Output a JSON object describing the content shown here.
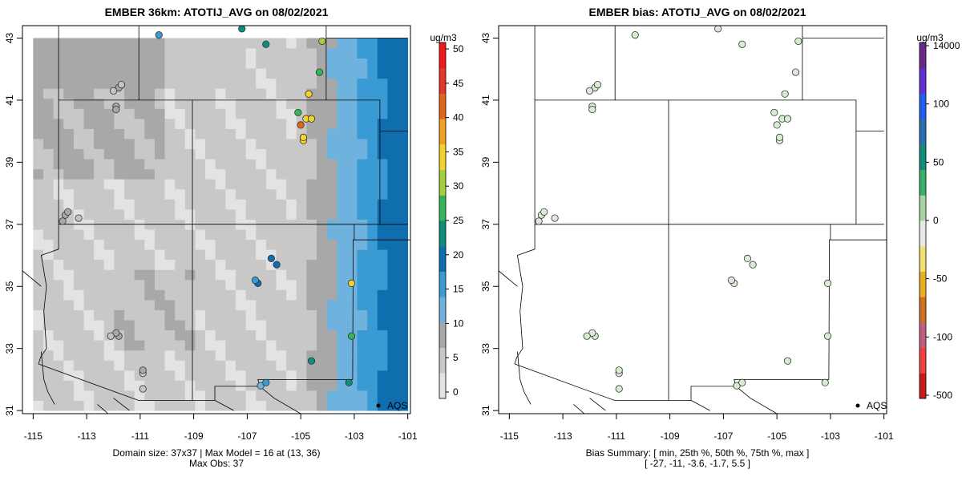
{
  "chart_data": [
    {
      "type": "map-grid-scatter",
      "title": "EMBER 36km: ATOTIJ_AVG on 08/02/2021",
      "xlim": [
        -115.4,
        -100.9
      ],
      "ylim": [
        30.9,
        43.4
      ],
      "x_ticks": [
        "-115",
        "-113",
        "-111",
        "-109",
        "-107",
        "-105",
        "-103",
        "-101"
      ],
      "x_tick_values": [
        -115,
        -113,
        -111,
        -109,
        -107,
        -105,
        -103,
        -101
      ],
      "y_ticks": [
        "31",
        "33",
        "35",
        "37",
        "39",
        "41",
        "43"
      ],
      "y_tick_values": [
        31,
        33,
        35,
        37,
        39,
        41,
        43
      ],
      "colorbar": {
        "unit": "ug/m3",
        "labels": [
          "0",
          "5",
          "10",
          "15",
          "20",
          "25",
          "30",
          "35",
          "40",
          "45",
          "50"
        ],
        "colors": [
          "#e3e3e3",
          "#c8c8c8",
          "#a8a8a8",
          "#6fb2de",
          "#3a9ad3",
          "#0e6eae",
          "#0f8f79",
          "#38b35a",
          "#a6cf3f",
          "#f3d22e",
          "#f0a020",
          "#e26617",
          "#e2342a",
          "#f01818"
        ]
      },
      "legend": {
        "label": "AQS",
        "position": "bottom-right"
      },
      "notes": [
        "Domain size: 37x37 | Max Model = 16 at (13, 36)",
        "Max Obs: 37"
      ],
      "observations": [
        {
          "lon": -113.8,
          "lat": 37.3,
          "value": 6
        },
        {
          "lon": -113.7,
          "lat": 37.4,
          "value": 6
        },
        {
          "lon": -113.9,
          "lat": 37.1,
          "value": 5
        },
        {
          "lon": -113.3,
          "lat": 37.2,
          "value": 4
        },
        {
          "lon": -111.9,
          "lat": 40.8,
          "value": 5
        },
        {
          "lon": -111.9,
          "lat": 40.7,
          "value": 5
        },
        {
          "lon": -111.8,
          "lat": 41.4,
          "value": 5
        },
        {
          "lon": -112.0,
          "lat": 41.3,
          "value": 4
        },
        {
          "lon": -111.7,
          "lat": 41.5,
          "value": 4
        },
        {
          "lon": -110.9,
          "lat": 32.2,
          "value": 4
        },
        {
          "lon": -110.9,
          "lat": 32.3,
          "value": 5
        },
        {
          "lon": -111.8,
          "lat": 33.4,
          "value": 5
        },
        {
          "lon": -111.9,
          "lat": 33.5,
          "value": 5
        },
        {
          "lon": -112.1,
          "lat": 33.4,
          "value": 4
        },
        {
          "lon": -110.9,
          "lat": 31.7,
          "value": 3
        },
        {
          "lon": -106.5,
          "lat": 31.8,
          "value": 8
        },
        {
          "lon": -106.3,
          "lat": 31.9,
          "value": 11
        },
        {
          "lon": -106.6,
          "lat": 35.1,
          "value": 14
        },
        {
          "lon": -106.7,
          "lat": 35.2,
          "value": 12
        },
        {
          "lon": -105.9,
          "lat": 35.7,
          "value": 14
        },
        {
          "lon": -106.1,
          "lat": 35.9,
          "value": 14
        },
        {
          "lon": -104.9,
          "lat": 39.7,
          "value": 30
        },
        {
          "lon": -104.9,
          "lat": 39.8,
          "value": 28
        },
        {
          "lon": -105.0,
          "lat": 40.2,
          "value": 37
        },
        {
          "lon": -104.8,
          "lat": 40.4,
          "value": 29
        },
        {
          "lon": -105.1,
          "lat": 40.6,
          "value": 21
        },
        {
          "lon": -104.6,
          "lat": 40.4,
          "value": 30
        },
        {
          "lon": -104.7,
          "lat": 41.2,
          "value": 28
        },
        {
          "lon": -103.1,
          "lat": 35.1,
          "value": 28
        },
        {
          "lon": -103.1,
          "lat": 33.4,
          "value": 23
        },
        {
          "lon": -104.3,
          "lat": 41.9,
          "value": 22
        },
        {
          "lon": -104.2,
          "lat": 42.9,
          "value": 27
        },
        {
          "lon": -107.2,
          "lat": 43.3,
          "value": 18
        },
        {
          "lon": -106.3,
          "lat": 42.8,
          "value": 18
        },
        {
          "lon": -110.3,
          "lat": 43.1,
          "value": 12
        },
        {
          "lon": -104.6,
          "lat": 32.6,
          "value": 19
        },
        {
          "lon": -103.2,
          "lat": 31.9,
          "value": 19
        }
      ]
    },
    {
      "type": "map-scatter",
      "title": "EMBER bias: ATOTIJ_AVG on 08/02/2021",
      "xlim": [
        -115.4,
        -100.9
      ],
      "ylim": [
        30.9,
        43.4
      ],
      "x_ticks": [
        "-115",
        "-113",
        "-111",
        "-109",
        "-107",
        "-105",
        "-103",
        "-101"
      ],
      "x_tick_values": [
        -115,
        -113,
        -111,
        -109,
        -107,
        -105,
        -103,
        -101
      ],
      "y_ticks": [
        "31",
        "33",
        "35",
        "37",
        "39",
        "41",
        "43"
      ],
      "y_tick_values": [
        31,
        33,
        35,
        37,
        39,
        41,
        43
      ],
      "colorbar": {
        "unit": "ug/m3",
        "labels": [
          "14000",
          "100",
          "50",
          "0",
          "-50",
          "-100",
          "-500"
        ],
        "colors": [
          "#c81c1c",
          "#f04040",
          "#c06080",
          "#d07020",
          "#e8b020",
          "#f0e070",
          "#e8e8e8",
          "#a6d4a0",
          "#3aae6a",
          "#0f8f79",
          "#2a70b0",
          "#2060f0",
          "#6030d0",
          "#6a2a8a"
        ]
      },
      "legend": {
        "label": "AQS",
        "position": "bottom-right"
      },
      "notes": [
        "Bias Summary: [ min, 25th %, 50th %, 75th %, max ]",
        "[ -27,   -11,   -3.6,   -1.7,   5.5 ]"
      ],
      "bias_summary": {
        "min": -27,
        "p25": -11,
        "p50": -3.6,
        "p75": -1.7,
        "max": 5.5
      }
    }
  ],
  "left": {
    "title": "EMBER 36km: ATOTIJ_AVG on 08/02/2021",
    "unit": "ug/m3",
    "legend": "AQS",
    "note1": "Domain size: 37x37 | Max Model = 16 at (13, 36)",
    "note2": "Max Obs: 37"
  },
  "right": {
    "title": "EMBER bias: ATOTIJ_AVG on 08/02/2021",
    "unit": "ug/m3",
    "legend": "AQS",
    "note1": "Bias Summary: [ min, 25th %, 50th %, 75th %, max ]",
    "note2": "[ -27,   -11,   -3.6,   -1.7,   5.5 ]"
  }
}
